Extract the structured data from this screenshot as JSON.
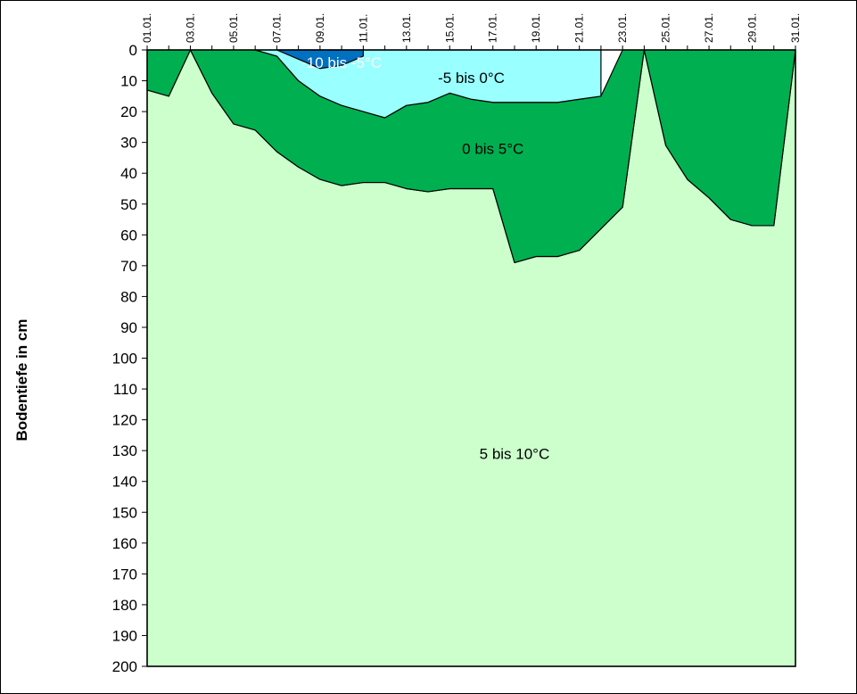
{
  "chart_data": {
    "type": "area",
    "title": "",
    "xlabel": "",
    "ylabel": "Bodentiefe in cm",
    "x": [
      "01.01.",
      "02.01.",
      "03.01.",
      "04.01.",
      "05.01.",
      "06.01.",
      "07.01.",
      "08.01.",
      "09.01.",
      "10.01.",
      "11.01.",
      "12.01.",
      "13.01.",
      "14.01.",
      "15.01.",
      "16.01.",
      "17.01.",
      "18.01.",
      "19.01.",
      "20.01.",
      "21.01.",
      "22.01.",
      "23.01.",
      "24.01.",
      "25.01.",
      "26.01.",
      "27.01.",
      "28.01.",
      "29.01.",
      "30.01.",
      "31.01."
    ],
    "x_tick_labels": [
      "01.01.",
      "03.01.",
      "05.01.",
      "07.01.",
      "09.01.",
      "11.01.",
      "13.01.",
      "15.01.",
      "17.01.",
      "19.01.",
      "21.01.",
      "23.01.",
      "25.01.",
      "27.01.",
      "29.01.",
      "31.01."
    ],
    "y_ticks": [
      0,
      10,
      20,
      30,
      40,
      50,
      60,
      70,
      80,
      90,
      100,
      110,
      120,
      130,
      140,
      150,
      160,
      170,
      180,
      190,
      200
    ],
    "ylim": [
      0,
      200
    ],
    "y_inverted": true,
    "x_axis_position": "top",
    "bands": [
      {
        "name": "-10 bis -5°C",
        "label": "-10 bis -5°C",
        "color": "#0070c0",
        "label_color": "#ffffff",
        "label_at": {
          "x": "10.01.",
          "y": 4
        },
        "values": [
          null,
          null,
          null,
          null,
          null,
          null,
          0,
          0,
          0,
          0,
          0,
          null,
          null,
          null,
          null,
          null,
          null,
          null,
          null,
          null,
          null,
          null,
          null,
          null,
          null,
          null,
          null,
          null,
          null,
          null,
          null
        ],
        "lower": [
          null,
          null,
          null,
          null,
          null,
          null,
          0,
          3,
          6,
          5,
          2,
          null,
          null,
          null,
          null,
          null,
          null,
          null,
          null,
          null,
          null,
          null,
          null,
          null,
          null,
          null,
          null,
          null,
          null,
          null,
          null
        ]
      },
      {
        "name": "-5 bis 0°C",
        "label": "-5 bis 0°C",
        "color": "#99ffff",
        "label_color": "#000000",
        "label_at": {
          "x": "16.01.",
          "y": 9
        },
        "values": [
          null,
          null,
          null,
          null,
          null,
          0,
          0,
          0,
          0,
          0,
          0,
          0,
          0,
          0,
          0,
          0,
          0,
          0,
          0,
          0,
          0,
          0,
          null,
          null,
          null,
          null,
          null,
          null,
          null,
          null,
          null
        ],
        "lower": [
          null,
          null,
          null,
          null,
          null,
          0,
          2,
          10,
          15,
          18,
          20,
          22,
          18,
          17,
          14,
          16,
          17,
          17,
          17,
          17,
          16,
          15,
          0,
          null,
          null,
          null,
          null,
          null,
          null,
          null,
          null
        ]
      },
      {
        "name": "0 bis 5°C",
        "label": "0 bis 5°C",
        "color": "#00b050",
        "label_color": "#000000",
        "label_at": {
          "x": "17.01.",
          "y": 32
        },
        "values": [
          0,
          0,
          0,
          0,
          0,
          0,
          2,
          10,
          15,
          18,
          20,
          22,
          18,
          17,
          14,
          16,
          17,
          17,
          17,
          17,
          16,
          15,
          0,
          0,
          0,
          0,
          0,
          0,
          0,
          0,
          0
        ],
        "lower": [
          13,
          15,
          0,
          14,
          24,
          26,
          33,
          38,
          42,
          44,
          43,
          43,
          45,
          46,
          45,
          45,
          45,
          69,
          67,
          67,
          65,
          58,
          51,
          0,
          31,
          42,
          48,
          55,
          57,
          57,
          0
        ]
      },
      {
        "name": "5 bis 10°C",
        "label": "5 bis 10°C",
        "color": "#ccffcc",
        "label_color": "#000000",
        "label_at": {
          "x": "18.01.",
          "y": 131
        },
        "values": [
          13,
          15,
          0,
          14,
          24,
          26,
          33,
          38,
          42,
          44,
          43,
          43,
          45,
          46,
          45,
          45,
          45,
          69,
          67,
          67,
          65,
          58,
          51,
          0,
          31,
          42,
          48,
          55,
          57,
          57,
          0
        ],
        "lower": [
          200,
          200,
          200,
          200,
          200,
          200,
          200,
          200,
          200,
          200,
          200,
          200,
          200,
          200,
          200,
          200,
          200,
          200,
          200,
          200,
          200,
          200,
          200,
          200,
          200,
          200,
          200,
          200,
          200,
          200,
          200
        ]
      }
    ]
  }
}
